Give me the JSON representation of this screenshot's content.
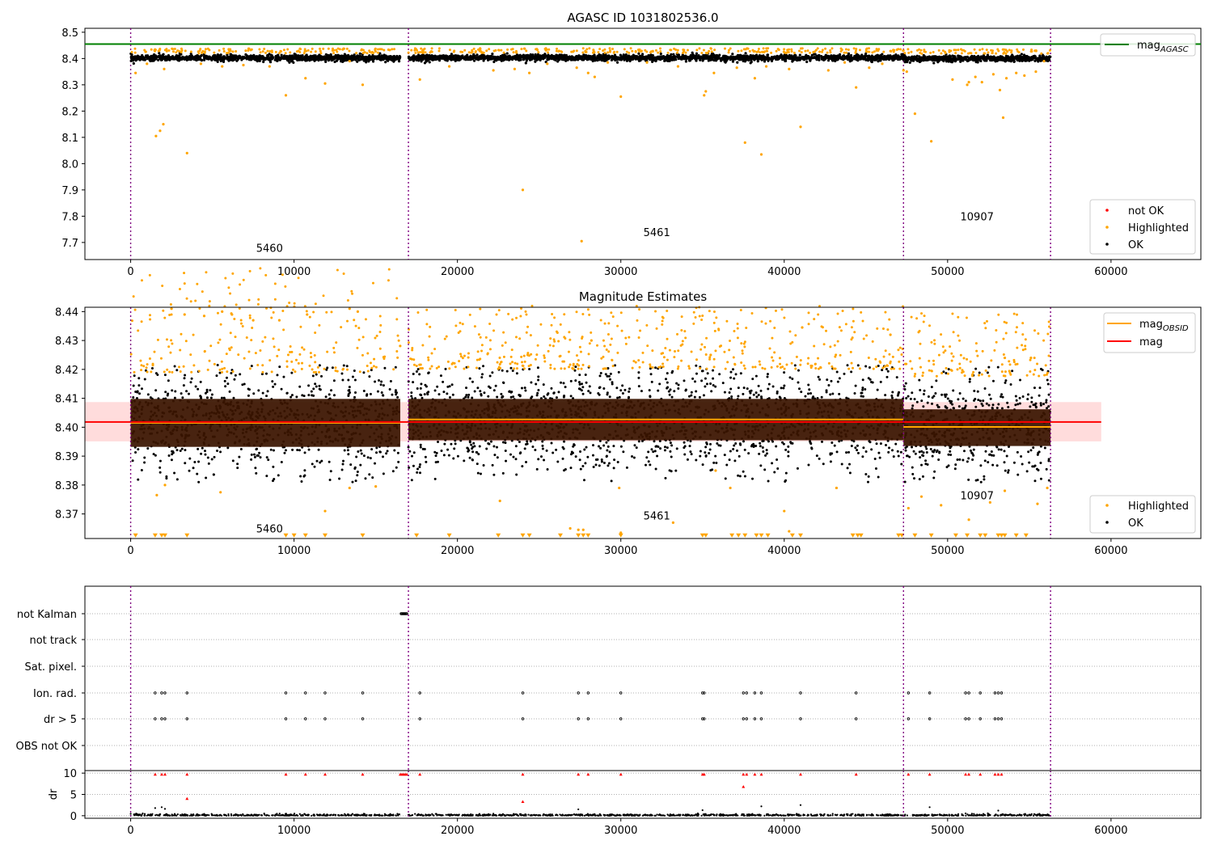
{
  "colors": {
    "ok": "#000000",
    "highlighted": "#ffa500",
    "not_ok": "#ff0000",
    "mag_agasc": "#008000",
    "mag_obsid": "#ffa500",
    "mag": "#ff0000",
    "obs_boundary": "#800080",
    "mag_band": "#ffc0c0",
    "obs_band": "#3a1400"
  },
  "chart_data": [
    {
      "type": "scatter",
      "title": "AGASC ID 1031802536.0",
      "xlim": [
        -2800,
        65500
      ],
      "ylim": [
        7.635,
        8.515
      ],
      "xticks": [
        0,
        10000,
        20000,
        30000,
        40000,
        50000,
        60000
      ],
      "yticks": [
        7.7,
        7.8,
        7.9,
        8.0,
        8.1,
        8.2,
        8.3,
        8.4,
        8.5
      ],
      "grid": false,
      "legend_upper": {
        "position": "top-right",
        "entries": [
          {
            "label": "mag",
            "sub": "AGASC",
            "kind": "line",
            "color": "mag_agasc"
          }
        ]
      },
      "legend_lower": {
        "position": "bottom-right",
        "entries": [
          {
            "label": "not OK",
            "kind": "dot",
            "color": "not_ok"
          },
          {
            "label": "Highlighted",
            "kind": "dot",
            "color": "highlighted"
          },
          {
            "label": "OK",
            "kind": "dot",
            "color": "ok"
          }
        ]
      },
      "mag_agasc": 8.455,
      "obs_boundaries": [
        0,
        17000,
        47300,
        56300
      ],
      "observations": [
        {
          "obsid": "5460",
          "x_start": 0,
          "x_end": 16500,
          "mag": 8.402,
          "label_x": 8500,
          "label_y": 7.68
        },
        {
          "obsid": "5461",
          "x_start": 17000,
          "x_end": 47300,
          "mag": 8.403,
          "label_x": 32200,
          "label_y": 7.74
        },
        {
          "obsid": "10907",
          "x_start": 47300,
          "x_end": 56300,
          "mag": 8.4,
          "label_x": 51800,
          "label_y": 7.8
        }
      ],
      "highlighted_outliers": [
        [
          300,
          8.345
        ],
        [
          1000,
          8.38
        ],
        [
          1550,
          8.105
        ],
        [
          1800,
          8.125
        ],
        [
          2000,
          8.15
        ],
        [
          2050,
          8.36
        ],
        [
          3450,
          8.04
        ],
        [
          4300,
          8.38
        ],
        [
          5600,
          8.37
        ],
        [
          6900,
          8.375
        ],
        [
          8500,
          8.37
        ],
        [
          9500,
          8.26
        ],
        [
          10700,
          8.325
        ],
        [
          11900,
          8.305
        ],
        [
          13400,
          8.39
        ],
        [
          14200,
          8.3
        ],
        [
          17700,
          8.32
        ],
        [
          19500,
          8.37
        ],
        [
          22200,
          8.355
        ],
        [
          23500,
          8.36
        ],
        [
          24000,
          7.9
        ],
        [
          24400,
          8.345
        ],
        [
          25500,
          8.38
        ],
        [
          27300,
          8.365
        ],
        [
          27600,
          7.705
        ],
        [
          28000,
          8.345
        ],
        [
          28400,
          8.33
        ],
        [
          29200,
          8.385
        ],
        [
          30000,
          8.255
        ],
        [
          31600,
          8.385
        ],
        [
          33500,
          8.37
        ],
        [
          35100,
          8.26
        ],
        [
          35200,
          8.275
        ],
        [
          35700,
          8.345
        ],
        [
          37100,
          8.365
        ],
        [
          37600,
          8.08
        ],
        [
          38200,
          8.325
        ],
        [
          38600,
          8.035
        ],
        [
          38900,
          8.37
        ],
        [
          40300,
          8.36
        ],
        [
          41000,
          8.14
        ],
        [
          42700,
          8.355
        ],
        [
          43700,
          8.385
        ],
        [
          44400,
          8.29
        ],
        [
          45200,
          8.365
        ],
        [
          46000,
          8.38
        ],
        [
          47300,
          8.355
        ],
        [
          47500,
          8.35
        ],
        [
          48000,
          8.19
        ],
        [
          49000,
          8.085
        ],
        [
          50300,
          8.32
        ],
        [
          51200,
          8.3
        ],
        [
          51300,
          8.31
        ],
        [
          51700,
          8.33
        ],
        [
          52100,
          8.31
        ],
        [
          52800,
          8.34
        ],
        [
          53200,
          8.28
        ],
        [
          53400,
          8.175
        ],
        [
          53600,
          8.325
        ],
        [
          54200,
          8.345
        ],
        [
          54700,
          8.335
        ],
        [
          55400,
          8.35
        ],
        [
          55900,
          8.39
        ]
      ]
    },
    {
      "type": "scatter",
      "title": "Magnitude Estimates",
      "xlim": [
        -2800,
        65500
      ],
      "ylim": [
        8.3615,
        8.4415
      ],
      "xticks": [
        0,
        10000,
        20000,
        30000,
        40000,
        50000,
        60000
      ],
      "yticks": [
        8.37,
        8.38,
        8.39,
        8.4,
        8.41,
        8.42,
        8.43,
        8.44
      ],
      "grid": false,
      "legend_upper": {
        "position": "top-right",
        "entries": [
          {
            "label": "mag",
            "sub": "OBSID",
            "kind": "line",
            "color": "mag_obsid"
          },
          {
            "label": "mag",
            "kind": "line",
            "color": "mag"
          }
        ]
      },
      "legend_lower": {
        "position": "bottom-right",
        "entries": [
          {
            "label": "Highlighted",
            "kind": "dot",
            "color": "highlighted"
          },
          {
            "label": "OK",
            "kind": "dot",
            "color": "ok"
          }
        ]
      },
      "mag": 8.4018,
      "mag_band": [
        8.3951,
        8.4087
      ],
      "mag_x_range": [
        -2800,
        59400
      ],
      "obs_boundaries": [
        0,
        17000,
        47300,
        56300
      ],
      "observations": [
        {
          "obsid": "5460",
          "x_start": 0,
          "x_end": 16500,
          "mag": 8.4015,
          "band": [
            8.3932,
            8.4098
          ],
          "label_x": 8500,
          "label_y": 8.365
        },
        {
          "obsid": "5461",
          "x_start": 17000,
          "x_end": 47300,
          "mag": 8.4027,
          "band": [
            8.3955,
            8.4098
          ],
          "label_x": 32200,
          "label_y": 8.3695
        },
        {
          "obsid": "10907",
          "x_start": 47300,
          "x_end": 56300,
          "mag": 8.4001,
          "band": [
            8.3935,
            8.4062
          ],
          "label_x": 51800,
          "label_y": 8.3765
        }
      ],
      "clipped_low_markers": [
        [
          300,
          8.3624
        ],
        [
          1500,
          8.3624
        ],
        [
          1900,
          8.3624
        ],
        [
          2100,
          8.3624
        ],
        [
          3450,
          8.3624
        ],
        [
          9500,
          8.3624
        ],
        [
          10000,
          8.3624
        ],
        [
          10700,
          8.3624
        ],
        [
          11900,
          8.3624
        ],
        [
          14200,
          8.3624
        ],
        [
          17500,
          8.3624
        ],
        [
          19500,
          8.3624
        ],
        [
          22500,
          8.3624
        ],
        [
          24000,
          8.3624
        ],
        [
          24400,
          8.3624
        ],
        [
          26300,
          8.3624
        ],
        [
          27400,
          8.3624
        ],
        [
          27700,
          8.3624
        ],
        [
          28000,
          8.3624
        ],
        [
          30000,
          8.3624
        ],
        [
          35000,
          8.3624
        ],
        [
          35200,
          8.3624
        ],
        [
          36800,
          8.3624
        ],
        [
          37200,
          8.3624
        ],
        [
          37600,
          8.3624
        ],
        [
          38300,
          8.3624
        ],
        [
          38600,
          8.3624
        ],
        [
          39000,
          8.3624
        ],
        [
          40500,
          8.3624
        ],
        [
          41000,
          8.3624
        ],
        [
          44200,
          8.3624
        ],
        [
          44500,
          8.3624
        ],
        [
          44700,
          8.3624
        ],
        [
          47000,
          8.3624
        ],
        [
          47200,
          8.3624
        ],
        [
          48000,
          8.3624
        ],
        [
          49000,
          8.3624
        ],
        [
          50500,
          8.3624
        ],
        [
          51200,
          8.3624
        ],
        [
          52000,
          8.3624
        ],
        [
          52300,
          8.3624
        ],
        [
          53100,
          8.3624
        ],
        [
          53300,
          8.3624
        ],
        [
          53500,
          8.3624
        ],
        [
          54200,
          8.3624
        ],
        [
          54800,
          8.3624
        ]
      ],
      "highlighted_outliers": [
        [
          1600,
          8.3765
        ],
        [
          2100,
          8.38
        ],
        [
          5500,
          8.3775
        ],
        [
          11900,
          8.371
        ],
        [
          13400,
          8.379
        ],
        [
          15000,
          8.3795
        ],
        [
          22600,
          8.3745
        ],
        [
          26900,
          8.365
        ],
        [
          27400,
          8.3645
        ],
        [
          27700,
          8.3645
        ],
        [
          29900,
          8.379
        ],
        [
          30000,
          8.3635
        ],
        [
          33200,
          8.367
        ],
        [
          35800,
          8.385
        ],
        [
          36700,
          8.379
        ],
        [
          40000,
          8.371
        ],
        [
          40300,
          8.364
        ],
        [
          43200,
          8.379
        ],
        [
          47600,
          8.372
        ],
        [
          48400,
          8.376
        ],
        [
          49600,
          8.373
        ],
        [
          51300,
          8.368
        ],
        [
          52600,
          8.374
        ],
        [
          53500,
          8.378
        ],
        [
          55500,
          8.3735
        ],
        [
          56100,
          8.379
        ],
        [
          2500,
          8.441
        ],
        [
          3300,
          8.439
        ],
        [
          4500,
          8.4385
        ],
        [
          5600,
          8.44
        ],
        [
          6200,
          8.439
        ],
        [
          7500,
          8.437
        ],
        [
          9100,
          8.437
        ],
        [
          10800,
          8.439
        ],
        [
          13400,
          8.441
        ],
        [
          13900,
          8.44
        ],
        [
          24300,
          8.425
        ],
        [
          28200,
          8.43
        ],
        [
          35500,
          8.425
        ],
        [
          41100,
          8.4345
        ],
        [
          46500,
          8.432
        ],
        [
          53500,
          8.424
        ],
        [
          55100,
          8.424
        ]
      ]
    },
    {
      "type": "scatter",
      "title": "",
      "xlim": [
        -2800,
        65500
      ],
      "xticks": [
        0,
        10000,
        20000,
        30000,
        40000,
        50000,
        60000
      ],
      "categories": [
        "not Kalman",
        "not track",
        "Sat. pixel.",
        "Ion. rad.",
        "dr > 5",
        "OBS not OK"
      ],
      "obs_boundaries": [
        0,
        17000,
        47300,
        56300
      ],
      "flags": {
        "not Kalman": [
          16550,
          16600,
          16650,
          16700,
          16750,
          16800,
          16850,
          16900
        ],
        "not track": [],
        "Sat. pixel.": [],
        "Ion. rad.": [
          1500,
          1900,
          2100,
          3450,
          9500,
          10700,
          11900,
          14200,
          17700,
          24000,
          27400,
          28000,
          30000,
          35000,
          35100,
          37500,
          37700,
          38200,
          38600,
          41000,
          44400,
          47600,
          48900,
          51100,
          51300,
          52000,
          52900,
          53100,
          53300
        ],
        "dr > 5": [
          1500,
          1900,
          2100,
          3450,
          9500,
          10700,
          11900,
          14200,
          17700,
          24000,
          27400,
          28000,
          30000,
          35000,
          35100,
          37500,
          37700,
          38200,
          38600,
          41000,
          44400,
          47600,
          48900,
          51100,
          51300,
          52000,
          52900,
          53100,
          53300
        ],
        "OBS not OK": []
      },
      "dr_ylabel": "dr",
      "dr_ylim": [
        -0.6,
        10.6
      ],
      "dr_yticks": [
        0,
        5,
        10
      ],
      "dr_red_points": [
        [
          1500,
          9.7
        ],
        [
          1900,
          9.7
        ],
        [
          2100,
          9.7
        ],
        [
          3450,
          9.7
        ],
        [
          3450,
          4.0
        ],
        [
          9500,
          9.7
        ],
        [
          10700,
          9.7
        ],
        [
          11900,
          9.7
        ],
        [
          14200,
          9.7
        ],
        [
          16500,
          9.7
        ],
        [
          16600,
          9.7
        ],
        [
          16700,
          9.7
        ],
        [
          16800,
          9.7
        ],
        [
          16900,
          9.7
        ],
        [
          17700,
          9.7
        ],
        [
          24000,
          9.7
        ],
        [
          24000,
          3.3
        ],
        [
          27400,
          9.7
        ],
        [
          28000,
          9.7
        ],
        [
          30000,
          9.7
        ],
        [
          35000,
          9.7
        ],
        [
          35100,
          9.7
        ],
        [
          37500,
          9.7
        ],
        [
          37500,
          6.8
        ],
        [
          37700,
          9.7
        ],
        [
          38200,
          9.7
        ],
        [
          38600,
          9.7
        ],
        [
          41000,
          9.7
        ],
        [
          44400,
          9.7
        ],
        [
          47600,
          9.7
        ],
        [
          48900,
          9.7
        ],
        [
          51100,
          9.7
        ],
        [
          51300,
          9.7
        ],
        [
          52000,
          9.7
        ],
        [
          52900,
          9.7
        ],
        [
          53100,
          9.7
        ],
        [
          53300,
          9.7
        ]
      ],
      "dr_black_outliers": [
        [
          1500,
          1.8
        ],
        [
          1900,
          2.0
        ],
        [
          2100,
          1.6
        ],
        [
          27400,
          1.5
        ],
        [
          35000,
          1.3
        ],
        [
          38600,
          2.2
        ],
        [
          41000,
          2.5
        ],
        [
          48900,
          2.0
        ],
        [
          53100,
          1.2
        ]
      ]
    }
  ]
}
